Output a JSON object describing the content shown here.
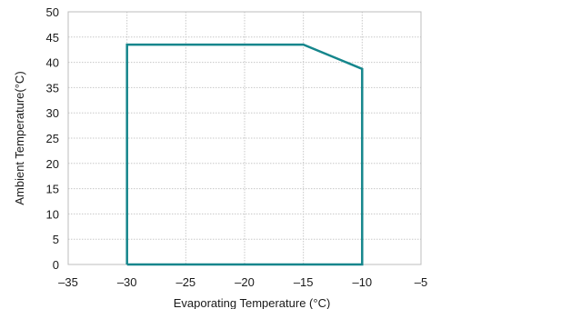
{
  "chart_data": {
    "type": "line",
    "title": "",
    "xlabel": "Evaporating Temperature (°C)",
    "ylabel": "Ambient Temperature(°C)",
    "xlim": [
      -35,
      -5
    ],
    "ylim": [
      0,
      50
    ],
    "xticks": [
      -35,
      -30,
      -25,
      -20,
      -15,
      -10,
      -5
    ],
    "yticks": [
      0,
      5,
      10,
      15,
      20,
      25,
      30,
      35,
      40,
      45,
      50
    ],
    "grid": true,
    "legend": "none",
    "series": [
      {
        "color": "#15868c",
        "points": [
          {
            "x": -30,
            "y": 0
          },
          {
            "x": -30,
            "y": 43.5
          },
          {
            "x": -15,
            "y": 43.5
          },
          {
            "x": -10,
            "y": 38.7
          },
          {
            "x": -10,
            "y": 0
          },
          {
            "x": -30,
            "y": 0
          }
        ]
      }
    ]
  }
}
